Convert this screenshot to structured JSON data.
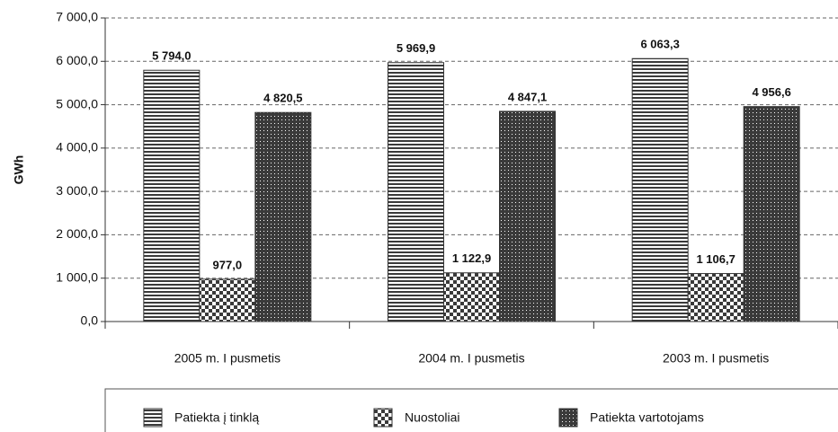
{
  "chart_data": {
    "type": "bar",
    "y_label": "GWh",
    "categories": [
      "2005 m. I pusmetis",
      "2004 m. I pusmetis",
      "2003 m. I pusmetis"
    ],
    "series": [
      {
        "name": "Patiekta į tinklą",
        "color": "#3a3a3a",
        "pattern": "horizontal-lines",
        "values": [
          5794.0,
          5969.9,
          6063.3
        ],
        "value_labels": [
          "5 794,0",
          "5 969,9",
          "6 063,3"
        ]
      },
      {
        "name": "Nuostoliai",
        "color": "#3a3a3a",
        "pattern": "checker",
        "values": [
          977.0,
          1122.9,
          1106.7
        ],
        "value_labels": [
          "977,0",
          "1 122,9",
          "1 106,7"
        ]
      },
      {
        "name": "Patiekta vartotojams",
        "color": "#3a3a3a",
        "pattern": "dots",
        "values": [
          4820.5,
          4847.1,
          4956.6
        ],
        "value_labels": [
          "4 820,5",
          "4 847,1",
          "4 956,6"
        ]
      }
    ],
    "ylim": [
      0,
      7000
    ],
    "yticks": [
      {
        "value": 0,
        "label": "0,0"
      },
      {
        "value": 1000,
        "label": "1 000,0"
      },
      {
        "value": 2000,
        "label": "2 000,0"
      },
      {
        "value": 3000,
        "label": "3 000,0"
      },
      {
        "value": 4000,
        "label": "4 000,0"
      },
      {
        "value": 5000,
        "label": "5 000,0"
      },
      {
        "value": 6000,
        "label": "6 000,0"
      },
      {
        "value": 7000,
        "label": "7 000,0"
      }
    ],
    "grid": true,
    "legend": "bottom"
  }
}
